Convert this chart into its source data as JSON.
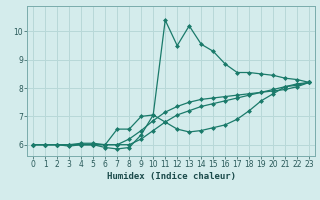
{
  "xlabel": "Humidex (Indice chaleur)",
  "ylabel": "",
  "bg_color": "#d4ecec",
  "grid_color": "#b8d8d8",
  "line_color": "#1a7a6a",
  "xlim": [
    -0.5,
    23.5
  ],
  "ylim": [
    5.6,
    10.9
  ],
  "xticks": [
    0,
    1,
    2,
    3,
    4,
    5,
    6,
    7,
    8,
    9,
    10,
    11,
    12,
    13,
    14,
    15,
    16,
    17,
    18,
    19,
    20,
    21,
    22,
    23
  ],
  "yticks": [
    6,
    7,
    8,
    9,
    10
  ],
  "line1_x": [
    0,
    1,
    2,
    3,
    4,
    5,
    6,
    7,
    8,
    9,
    10,
    11,
    12,
    13,
    14,
    15,
    16,
    17,
    18,
    19,
    20,
    21,
    22,
    23
  ],
  "line1_y": [
    6.0,
    6.0,
    6.0,
    5.95,
    6.0,
    6.0,
    5.9,
    5.85,
    5.9,
    6.35,
    7.05,
    10.4,
    9.5,
    10.2,
    9.55,
    9.3,
    8.85,
    8.55,
    8.55,
    8.5,
    8.45,
    8.35,
    8.3,
    8.2
  ],
  "line2_x": [
    0,
    1,
    2,
    3,
    4,
    5,
    6,
    7,
    8,
    9,
    10,
    11,
    12,
    13,
    14,
    15,
    16,
    17,
    18,
    19,
    20,
    21,
    22,
    23
  ],
  "line2_y": [
    6.0,
    6.0,
    6.0,
    6.0,
    6.05,
    6.05,
    6.0,
    6.55,
    6.55,
    7.0,
    7.05,
    6.8,
    6.55,
    6.45,
    6.5,
    6.6,
    6.7,
    6.9,
    7.2,
    7.55,
    7.8,
    8.05,
    8.15,
    8.2
  ],
  "line3_x": [
    0,
    1,
    2,
    3,
    4,
    5,
    6,
    7,
    8,
    9,
    10,
    11,
    12,
    13,
    14,
    15,
    16,
    17,
    18,
    19,
    20,
    21,
    22,
    23
  ],
  "line3_y": [
    6.0,
    6.0,
    6.0,
    6.0,
    6.0,
    6.0,
    6.0,
    6.0,
    6.2,
    6.5,
    6.85,
    7.15,
    7.35,
    7.5,
    7.6,
    7.65,
    7.7,
    7.75,
    7.8,
    7.85,
    7.9,
    7.95,
    8.05,
    8.2
  ],
  "line4_x": [
    0,
    1,
    2,
    3,
    4,
    5,
    6,
    7,
    8,
    9,
    10,
    11,
    12,
    13,
    14,
    15,
    16,
    17,
    18,
    19,
    20,
    21,
    22,
    23
  ],
  "line4_y": [
    6.0,
    6.0,
    6.0,
    6.0,
    6.0,
    6.0,
    6.0,
    6.0,
    6.0,
    6.2,
    6.5,
    6.8,
    7.05,
    7.2,
    7.35,
    7.45,
    7.55,
    7.65,
    7.75,
    7.85,
    7.95,
    8.05,
    8.1,
    8.2
  ],
  "marker": "D",
  "markersize": 2.0,
  "linewidth": 0.9,
  "tick_fontsize": 5.5,
  "xlabel_fontsize": 6.5
}
